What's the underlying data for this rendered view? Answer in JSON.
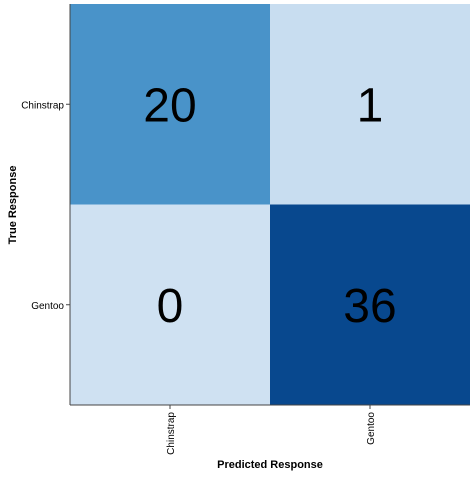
{
  "chart_data": {
    "type": "heatmap",
    "title": "",
    "xlabel": "Predicted Response",
    "ylabel": "True Response",
    "x_categories": [
      "Chinstrap",
      "Gentoo"
    ],
    "y_categories": [
      "Chinstrap",
      "Gentoo"
    ],
    "values": [
      [
        20,
        1
      ],
      [
        0,
        36
      ]
    ],
    "color_scale": {
      "name": "Blues",
      "low": "#cfe1f2",
      "high": "#08488e"
    },
    "grid": false,
    "legend": "none"
  }
}
